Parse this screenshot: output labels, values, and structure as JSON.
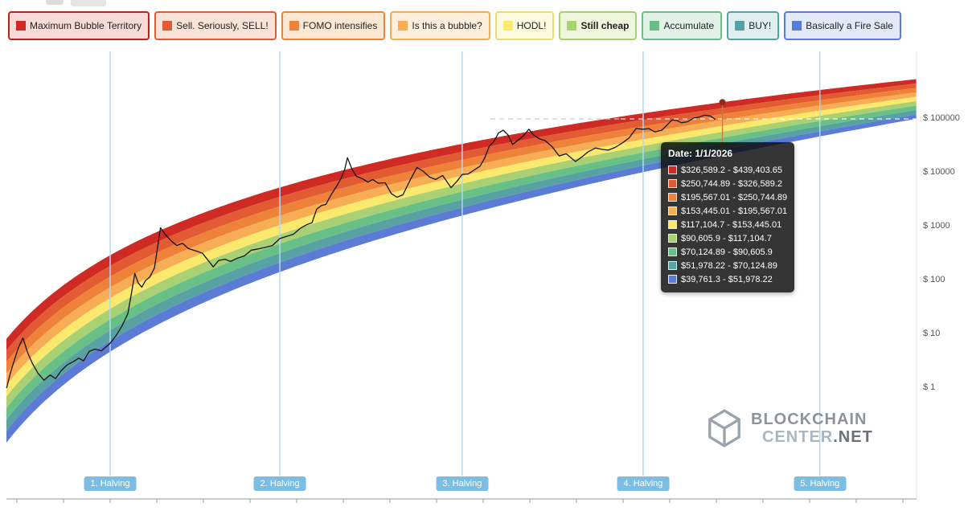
{
  "legend": {
    "items": [
      {
        "label": "Maximum Bubble Territory",
        "swatch": "#d02a24",
        "border": "#b7241c",
        "bg": "#f8dbd7",
        "bold": false
      },
      {
        "label": "Sell. Seriously, SELL!",
        "swatch": "#e25b33",
        "border": "#e25b33",
        "bg": "#fbe2d8",
        "bold": false
      },
      {
        "label": "FOMO intensifies",
        "swatch": "#ee8239",
        "border": "#ee8239",
        "bg": "#fce7d2",
        "bold": false
      },
      {
        "label": "Is this a bubble?",
        "swatch": "#f6ad53",
        "border": "#f6ad53",
        "bg": "#fdefdb",
        "bold": false
      },
      {
        "label": "HODL!",
        "swatch": "#fae96d",
        "border": "#ecdc74",
        "bg": "#fefae0",
        "bold": false
      },
      {
        "label": "Still cheap",
        "swatch": "#a9d072",
        "border": "#a9d072",
        "bg": "#eef5dd",
        "bold": true
      },
      {
        "label": "Accumulate",
        "swatch": "#68c087",
        "border": "#68c087",
        "bg": "#e1f1e7",
        "bold": false
      },
      {
        "label": "BUY!",
        "swatch": "#58a2a4",
        "border": "#58a2a4",
        "bg": "#dfeeee",
        "bold": false
      },
      {
        "label": "Basically a Fire Sale",
        "swatch": "#5b7bd5",
        "border": "#5b7bd5",
        "bg": "#e2e9f8",
        "bold": false
      }
    ]
  },
  "tooltip": {
    "title": "Date: 1/1/2026",
    "rows": [
      {
        "range": "$326,589.2 - $439,403.65",
        "color": "#d02a24"
      },
      {
        "range": "$250,744.89 - $326,589.2",
        "color": "#e25b33"
      },
      {
        "range": "$195,567.01 - $250,744.89",
        "color": "#ee8239"
      },
      {
        "range": "$153,445.01 - $195,567.01",
        "color": "#f6ad53"
      },
      {
        "range": "$117,104.7 - $153,445.01",
        "color": "#fae96d"
      },
      {
        "range": "$90,605.9 - $117,104.7",
        "color": "#a9d072"
      },
      {
        "range": "$70,124.89 - $90,605.9",
        "color": "#68c087"
      },
      {
        "range": "$51,978.22 - $70,124.89",
        "color": "#58a2a4"
      },
      {
        "range": "$39,761.3 - $51,978.22",
        "color": "#5b7bd5"
      }
    ]
  },
  "y_axis": {
    "ticks": [
      100000,
      10000,
      1000,
      100,
      10,
      1
    ],
    "labels": [
      "$ 100000",
      "$ 10000",
      "$ 1000",
      "$ 100",
      "$ 10",
      "$ 1"
    ]
  },
  "halvings": {
    "labels": [
      "1. Halving",
      "2. Halving",
      "3. Halving",
      "4. Halving",
      "5. Halving"
    ]
  },
  "watermark": {
    "line1": "BLOCKCHAIN",
    "line2_a": "CENTER",
    "line2_b": ".NET"
  },
  "colors": {
    "halving_line": "#b3d8f2",
    "halving_badge_bg": "#7cbde4",
    "price_line": "#141414",
    "dashed_line": "#c9c9c9",
    "hover_line": "#c77b3a",
    "hover_dot": "#8c2d1e",
    "axis": "#9a9a9a",
    "plot_border": "#e3e3e3"
  },
  "chart_data": {
    "type": "line",
    "title": "Bitcoin Rainbow Price Chart (logarithmic regression bands)",
    "x_axis": {
      "scale": "time",
      "visible_range_years": [
        2010.65,
        2030.16
      ]
    },
    "y_axis": {
      "scale": "log",
      "unit": "USD",
      "ticks": [
        1,
        10,
        100,
        1000,
        10000,
        100000
      ]
    },
    "legend_position": "top",
    "grid": false,
    "bands": [
      {
        "label": "Maximum Bubble Territory",
        "color": "#d02a24",
        "range_usd_on_hover_date": [
          326589.2,
          439403.65
        ]
      },
      {
        "label": "Sell. Seriously, SELL!",
        "color": "#e25b33",
        "range_usd_on_hover_date": [
          250744.89,
          326589.2
        ]
      },
      {
        "label": "FOMO intensifies",
        "color": "#ee8239",
        "range_usd_on_hover_date": [
          195567.01,
          250744.89
        ]
      },
      {
        "label": "Is this a bubble?",
        "color": "#f6ad53",
        "range_usd_on_hover_date": [
          153445.01,
          195567.01
        ]
      },
      {
        "label": "HODL!",
        "color": "#fae96d",
        "range_usd_on_hover_date": [
          117104.7,
          153445.01
        ]
      },
      {
        "label": "Still cheap",
        "color": "#a9d072",
        "range_usd_on_hover_date": [
          90605.9,
          117104.7
        ]
      },
      {
        "label": "Accumulate",
        "color": "#68c087",
        "range_usd_on_hover_date": [
          70124.89,
          90605.9
        ]
      },
      {
        "label": "BUY!",
        "color": "#58a2a4",
        "range_usd_on_hover_date": [
          51978.22,
          70124.89
        ]
      },
      {
        "label": "Basically a Fire Sale",
        "color": "#5b7bd5",
        "range_usd_on_hover_date": [
          39761.3,
          51978.22
        ]
      }
    ],
    "halving_years": [
      2012.87,
      2016.51,
      2020.42,
      2024.3,
      2028.09
    ],
    "current_price_line": 100000,
    "hover": {
      "date": "1/1/2026",
      "year": 2026.0
    },
    "price_series": [
      [
        2010.65,
        1.0
      ],
      [
        2010.73,
        1.9
      ],
      [
        2010.82,
        3.4
      ],
      [
        2010.9,
        5.5
      ],
      [
        2011.0,
        8.5
      ],
      [
        2011.1,
        4.6
      ],
      [
        2011.2,
        2.9
      ],
      [
        2011.32,
        1.9
      ],
      [
        2011.45,
        1.4
      ],
      [
        2011.58,
        1.75
      ],
      [
        2011.7,
        1.5
      ],
      [
        2011.82,
        2.1
      ],
      [
        2011.95,
        2.7
      ],
      [
        2012.08,
        3.1
      ],
      [
        2012.2,
        3.6
      ],
      [
        2012.3,
        3.2
      ],
      [
        2012.42,
        4.8
      ],
      [
        2012.55,
        5.3
      ],
      [
        2012.68,
        4.9
      ],
      [
        2012.87,
        6.8
      ],
      [
        2013.0,
        9.5
      ],
      [
        2013.12,
        14
      ],
      [
        2013.25,
        24
      ],
      [
        2013.33,
        60
      ],
      [
        2013.4,
        135
      ],
      [
        2013.47,
        90
      ],
      [
        2013.55,
        75
      ],
      [
        2013.63,
        100
      ],
      [
        2013.72,
        115
      ],
      [
        2013.82,
        170
      ],
      [
        2013.95,
        950
      ],
      [
        2014.05,
        720
      ],
      [
        2014.18,
        540
      ],
      [
        2014.3,
        445
      ],
      [
        2014.42,
        490
      ],
      [
        2014.55,
        390
      ],
      [
        2014.7,
        355
      ],
      [
        2014.85,
        320
      ],
      [
        2015.0,
        220
      ],
      [
        2015.08,
        178
      ],
      [
        2015.2,
        235
      ],
      [
        2015.33,
        248
      ],
      [
        2015.45,
        225
      ],
      [
        2015.6,
        258
      ],
      [
        2015.75,
        285
      ],
      [
        2015.9,
        365
      ],
      [
        2016.05,
        385
      ],
      [
        2016.2,
        410
      ],
      [
        2016.35,
        445
      ],
      [
        2016.51,
        600
      ],
      [
        2016.65,
        655
      ],
      [
        2016.8,
        720
      ],
      [
        2016.95,
        930
      ],
      [
        2017.08,
        1080
      ],
      [
        2017.2,
        1180
      ],
      [
        2017.3,
        2100
      ],
      [
        2017.4,
        2450
      ],
      [
        2017.5,
        2600
      ],
      [
        2017.62,
        4050
      ],
      [
        2017.72,
        5500
      ],
      [
        2017.82,
        7800
      ],
      [
        2017.9,
        11500
      ],
      [
        2017.96,
        19000
      ],
      [
        2018.05,
        12000
      ],
      [
        2018.15,
        8600
      ],
      [
        2018.27,
        7800
      ],
      [
        2018.4,
        6700
      ],
      [
        2018.5,
        7500
      ],
      [
        2018.62,
        6400
      ],
      [
        2018.77,
        6500
      ],
      [
        2018.9,
        4100
      ],
      [
        2019.02,
        3500
      ],
      [
        2019.15,
        3900
      ],
      [
        2019.3,
        7200
      ],
      [
        2019.45,
        12600
      ],
      [
        2019.58,
        10700
      ],
      [
        2019.72,
        8300
      ],
      [
        2019.85,
        7500
      ],
      [
        2020.0,
        8900
      ],
      [
        2020.18,
        5300
      ],
      [
        2020.3,
        6800
      ],
      [
        2020.42,
        9300
      ],
      [
        2020.55,
        9500
      ],
      [
        2020.68,
        11300
      ],
      [
        2020.8,
        13100
      ],
      [
        2020.9,
        18500
      ],
      [
        2021.0,
        31000
      ],
      [
        2021.1,
        38000
      ],
      [
        2021.2,
        55000
      ],
      [
        2021.3,
        61500
      ],
      [
        2021.4,
        51000
      ],
      [
        2021.5,
        33500
      ],
      [
        2021.6,
        39000
      ],
      [
        2021.72,
        47500
      ],
      [
        2021.85,
        64500
      ],
      [
        2021.95,
        50500
      ],
      [
        2022.08,
        42500
      ],
      [
        2022.2,
        39500
      ],
      [
        2022.35,
        30500
      ],
      [
        2022.5,
        20500
      ],
      [
        2022.65,
        22500
      ],
      [
        2022.85,
        16200
      ],
      [
        2023.0,
        20000
      ],
      [
        2023.12,
        24500
      ],
      [
        2023.28,
        28800
      ],
      [
        2023.42,
        27200
      ],
      [
        2023.55,
        26300
      ],
      [
        2023.7,
        29500
      ],
      [
        2023.85,
        35500
      ],
      [
        2024.0,
        44500
      ],
      [
        2024.15,
        66500
      ],
      [
        2024.3,
        64500
      ],
      [
        2024.42,
        66000
      ],
      [
        2024.55,
        57500
      ],
      [
        2024.7,
        61500
      ],
      [
        2024.82,
        78000
      ],
      [
        2024.92,
        96000
      ],
      [
        2025.02,
        93500
      ],
      [
        2025.12,
        85000
      ],
      [
        2025.25,
        88500
      ],
      [
        2025.38,
        103500
      ],
      [
        2025.5,
        107500
      ],
      [
        2025.62,
        117500
      ],
      [
        2025.75,
        112500
      ],
      [
        2025.85,
        97500
      ]
    ]
  }
}
